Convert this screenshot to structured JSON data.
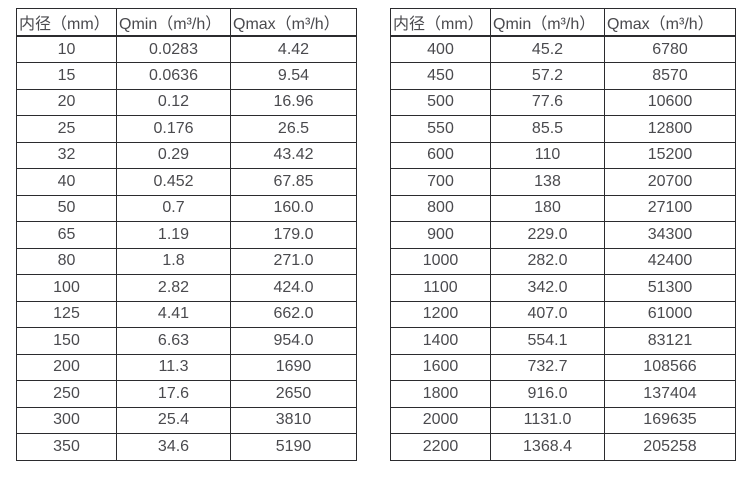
{
  "page": {
    "background_color": "#ffffff",
    "text_color": "#4a4a4e",
    "border_color": "#2b2b2e"
  },
  "tables": [
    {
      "name": "flow-table-small-diameters",
      "headers": [
        "内径（mm）",
        "Qmin（m³/h）",
        "Qmax（m³/h）"
      ],
      "rows": [
        [
          "10",
          "0.0283",
          "4.42"
        ],
        [
          "15",
          "0.0636",
          "9.54"
        ],
        [
          "20",
          "0.12",
          "16.96"
        ],
        [
          "25",
          "0.176",
          "26.5"
        ],
        [
          "32",
          "0.29",
          "43.42"
        ],
        [
          "40",
          "0.452",
          "67.85"
        ],
        [
          "50",
          "0.7",
          "160.0"
        ],
        [
          "65",
          "1.19",
          "179.0"
        ],
        [
          "80",
          "1.8",
          "271.0"
        ],
        [
          "100",
          "2.82",
          "424.0"
        ],
        [
          "125",
          "4.41",
          "662.0"
        ],
        [
          "150",
          "6.63",
          "954.0"
        ],
        [
          "200",
          "11.3",
          "1690"
        ],
        [
          "250",
          "17.6",
          "2650"
        ],
        [
          "300",
          "25.4",
          "3810"
        ],
        [
          "350",
          "34.6",
          "5190"
        ]
      ]
    },
    {
      "name": "flow-table-large-diameters",
      "headers": [
        "内径（mm）",
        "Qmin（m³/h）",
        "Qmax（m³/h）"
      ],
      "rows": [
        [
          "400",
          "45.2",
          "6780"
        ],
        [
          "450",
          "57.2",
          "8570"
        ],
        [
          "500",
          "77.6",
          "10600"
        ],
        [
          "550",
          "85.5",
          "12800"
        ],
        [
          "600",
          "110",
          "15200"
        ],
        [
          "700",
          "138",
          "20700"
        ],
        [
          "800",
          "180",
          "27100"
        ],
        [
          "900",
          "229.0",
          "34300"
        ],
        [
          "1000",
          "282.0",
          "42400"
        ],
        [
          "1100",
          "342.0",
          "51300"
        ],
        [
          "1200",
          "407.0",
          "61000"
        ],
        [
          "1400",
          "554.1",
          "83121"
        ],
        [
          "1600",
          "732.7",
          "108566"
        ],
        [
          "1800",
          "916.0",
          "137404"
        ],
        [
          "2000",
          "1131.0",
          "169635"
        ],
        [
          "2200",
          "1368.4",
          "205258"
        ]
      ]
    }
  ],
  "chart_data": {
    "type": "table",
    "title": "",
    "columns": [
      "内径（mm）",
      "Qmin（m³/h）",
      "Qmax（m³/h）"
    ],
    "note": "two side-by-side tables of water meter flow ranges by inner diameter"
  }
}
